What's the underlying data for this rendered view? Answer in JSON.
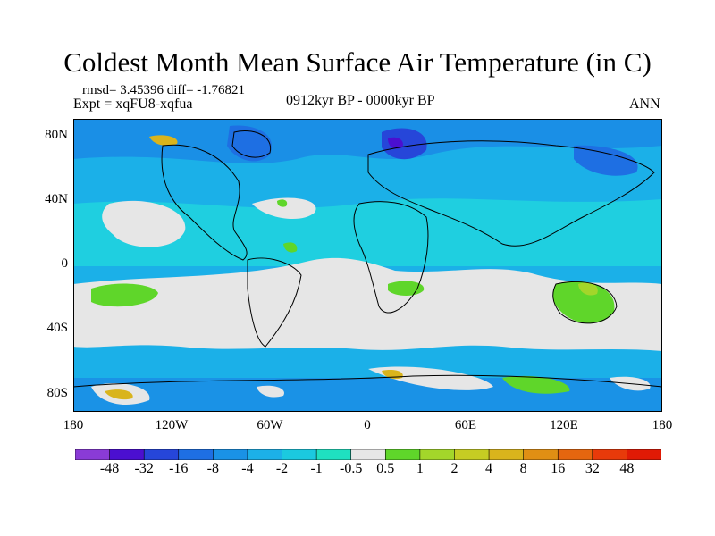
{
  "title": "Coldest Month Mean Surface Air Temperature (in C)",
  "stats": {
    "rmsd_text": "rmsd= 3.45396 diff= -1.76821"
  },
  "experiment": "Expt = xqFU8-xqfua",
  "period": "0912kyr BP - 0000kyr BP",
  "season": "ANN",
  "axes": {
    "y_labels": [
      "80N",
      "40N",
      "0",
      "40S",
      "80S"
    ],
    "x_labels": [
      "180",
      "120W",
      "60W",
      "0",
      "60E",
      "120E",
      "180"
    ]
  },
  "colorbar": {
    "labels": [
      "-48",
      "-32",
      "-16",
      "-8",
      "-4",
      "-2",
      "-1",
      "-0.5",
      "0.5",
      "1",
      "2",
      "4",
      "8",
      "16",
      "32",
      "48"
    ],
    "colors": [
      "#8a3bd6",
      "#4b0fd0",
      "#2646d9",
      "#1e6fe3",
      "#1a92e6",
      "#1cb0e8",
      "#1bc9df",
      "#1fe0c0",
      "#e6e6e6",
      "#5fd62a",
      "#a3d62a",
      "#c6cc23",
      "#d9b41c",
      "#e08f14",
      "#e5660f",
      "#e83a0a",
      "#e01a05"
    ]
  }
}
